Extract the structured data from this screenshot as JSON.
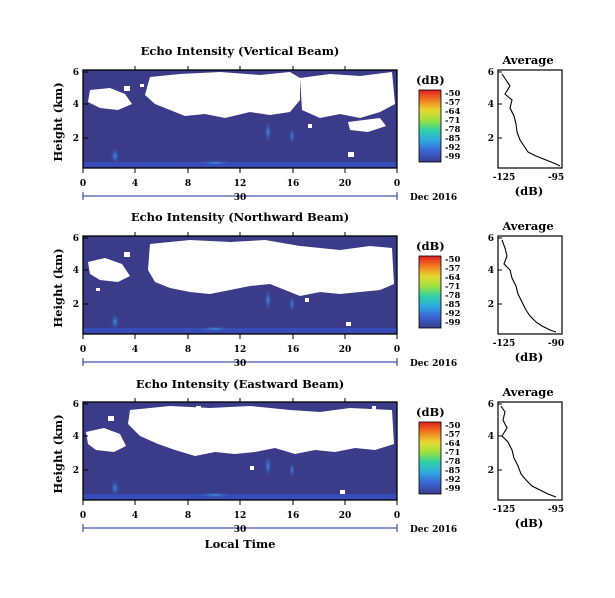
{
  "chart_data": [
    {
      "type": "heatmap",
      "title": "Echo Intensity (Vertical Beam)",
      "ylabel": "Height (km)",
      "yticks": [
        "6",
        "4",
        "2"
      ],
      "xticks": [
        "0",
        "4",
        "8",
        "12",
        "16",
        "20",
        "0"
      ],
      "day_label": "30",
      "date_label": "Dec 2016",
      "colorbar": {
        "unit": "(dB)",
        "ticks": [
          "-50",
          "-57",
          "-64",
          "-71",
          "-78",
          "-85",
          "-92",
          "-99"
        ]
      },
      "average": {
        "title": "Average",
        "xlabel": "(dB)",
        "xticks": [
          "-125",
          "-95"
        ],
        "yticks": [
          "6",
          "4",
          "2"
        ]
      }
    },
    {
      "type": "heatmap",
      "title": "Echo Intensity (Northward Beam)",
      "ylabel": "Height (km)",
      "yticks": [
        "6",
        "4",
        "2"
      ],
      "xticks": [
        "0",
        "4",
        "8",
        "12",
        "16",
        "20",
        "0"
      ],
      "day_label": "30",
      "date_label": "Dec 2016",
      "colorbar": {
        "unit": "(dB)",
        "ticks": [
          "-50",
          "-57",
          "-64",
          "-71",
          "-78",
          "-85",
          "-92",
          "-99"
        ]
      },
      "average": {
        "title": "Average",
        "xlabel": "(dB)",
        "xticks": [
          "-125",
          "-90"
        ],
        "yticks": [
          "6",
          "4",
          "2"
        ]
      }
    },
    {
      "type": "heatmap",
      "title": "Echo Intensity (Eastward Beam)",
      "ylabel": "Height (km)",
      "yticks": [
        "6",
        "4",
        "2"
      ],
      "xticks": [
        "0",
        "4",
        "8",
        "12",
        "16",
        "20",
        "0"
      ],
      "day_label": "30",
      "date_label": "Dec 2016",
      "xlabel": "Local Time",
      "colorbar": {
        "unit": "(dB)",
        "ticks": [
          "-50",
          "-57",
          "-64",
          "-71",
          "-78",
          "-85",
          "-92",
          "-99"
        ]
      },
      "average": {
        "title": "Average",
        "xlabel": "(dB)",
        "xticks": [
          "-125",
          "-95"
        ],
        "yticks": [
          "6",
          "4",
          "2"
        ]
      }
    }
  ],
  "colors": {
    "field": "#3a3c8a",
    "low_band": "#3552c8",
    "colorbar": [
      "#e02020",
      "#f07a20",
      "#e8d830",
      "#9ee040",
      "#30d0a8",
      "#30a8e0",
      "#3a66d8",
      "#3a3c8a"
    ]
  }
}
